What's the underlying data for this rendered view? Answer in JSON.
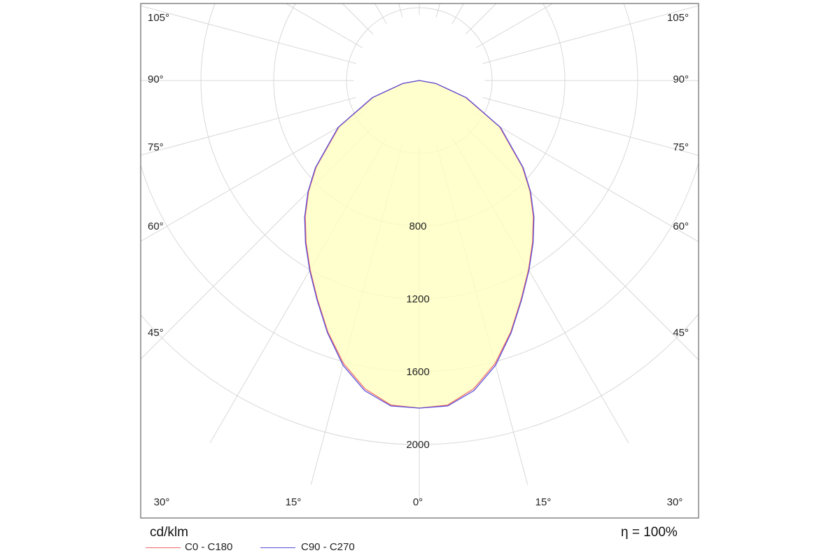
{
  "chart_data": {
    "type": "polar-photometric",
    "unit_label": "cd/klm",
    "efficiency_label": "η = 100%",
    "radial_ticks": [
      400,
      800,
      1200,
      1600,
      2000
    ],
    "radial_tick_labels": [
      "",
      "800",
      "1200",
      "1600",
      "2000"
    ],
    "radial_max": 2300,
    "angle_ticks_deg": [
      0,
      15,
      30,
      45,
      60,
      75,
      90,
      105,
      120,
      135,
      150,
      165,
      180
    ],
    "side_angle_labels": [
      "105°",
      "90°",
      "75°",
      "60°",
      "45°"
    ],
    "bottom_angle_labels": [
      "30°",
      "15°",
      "0°",
      "15°",
      "30°"
    ],
    "colors": {
      "fill": "#ffffc0",
      "c0_c180": "#ee6a6a",
      "c90_c270": "#5a4fd6",
      "grid": "#d8d8d8",
      "frame": "#666666"
    },
    "series": [
      {
        "name": "C0 - C180",
        "angles_deg": [
          0,
          5,
          10,
          15,
          20,
          25,
          30,
          35,
          40,
          45,
          50,
          60,
          70,
          80,
          90
        ],
        "values": [
          1800,
          1790,
          1720,
          1610,
          1470,
          1325,
          1200,
          1085,
          975,
          860,
          740,
          510,
          270,
          90,
          0
        ]
      },
      {
        "name": "C90 - C270",
        "angles_deg": [
          0,
          5,
          10,
          15,
          20,
          25,
          30,
          35,
          40,
          45,
          50,
          60,
          70,
          80,
          90
        ],
        "values": [
          1800,
          1795,
          1730,
          1620,
          1475,
          1330,
          1205,
          1090,
          980,
          865,
          745,
          515,
          275,
          92,
          0
        ]
      }
    ]
  }
}
